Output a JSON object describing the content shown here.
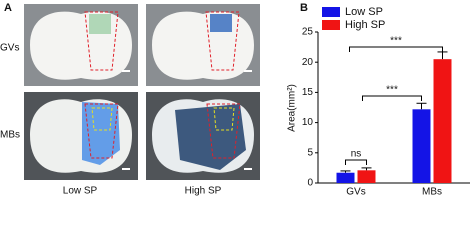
{
  "panel_a": {
    "label": "A",
    "row_labels": [
      "GVs",
      "MBs"
    ],
    "column_labels": [
      "Low SP",
      "High SP"
    ]
  },
  "chart_data": {
    "type": "bar",
    "panel_label": "B",
    "ylabel": "Area(mm²)",
    "categories": [
      "GVs",
      "MBs"
    ],
    "series": [
      {
        "name": "Low SP",
        "color": "#1414e6",
        "values": [
          1.7,
          12.2
        ],
        "errors": [
          0.3,
          1.0
        ]
      },
      {
        "name": "High SP",
        "color": "#f01414",
        "values": [
          2.1,
          20.5
        ],
        "errors": [
          0.4,
          1.2
        ]
      }
    ],
    "ylim": [
      0,
      25
    ],
    "yticks": [
      0,
      5,
      10,
      15,
      20,
      25
    ],
    "annotations": [
      "ns",
      "***",
      "***"
    ],
    "legend": "upper left"
  }
}
